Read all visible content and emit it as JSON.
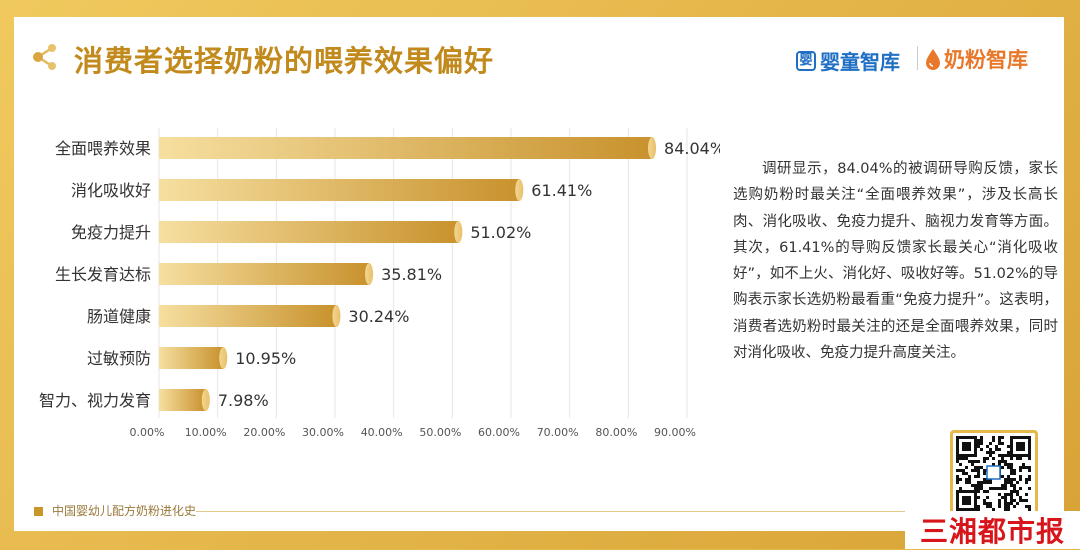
{
  "title": "消费者选择奶粉的喂养效果偏好",
  "brands": {
    "brand1_logo_char": "婴",
    "brand1": "婴童智库",
    "brand2": "奶粉智库"
  },
  "icons": {
    "title": "share-icon",
    "brand1": "baby-logo-icon",
    "brand2": "milk-drop-icon",
    "qr": "qr-code-icon"
  },
  "colors": {
    "bar_light": "#f6dfa0",
    "bar_dark": "#c8922d",
    "title": "#c28a1c",
    "frame": "#e7b94a"
  },
  "chart_data": {
    "type": "bar",
    "orientation": "horizontal",
    "categories": [
      "全面喂养效果",
      "消化吸收好",
      "免疫力提升",
      "生长发育达标",
      "肠道健康",
      "过敏预防",
      "智力、视力发育"
    ],
    "values": [
      84.04,
      61.41,
      51.02,
      35.81,
      30.24,
      10.95,
      7.98
    ],
    "value_labels": [
      "84.04%",
      "61.41%",
      "51.02%",
      "35.81%",
      "30.24%",
      "10.95%",
      "7.98%"
    ],
    "xlim": [
      0,
      90
    ],
    "xticks": [
      0,
      10,
      20,
      30,
      40,
      50,
      60,
      70,
      80,
      90
    ],
    "xtick_labels": [
      "0.00%",
      "10.00%",
      "20.00%",
      "30.00%",
      "40.00%",
      "50.00%",
      "60.00%",
      "70.00%",
      "80.00%",
      "90.00%"
    ],
    "grid": true,
    "title": "",
    "xlabel": "",
    "ylabel": ""
  },
  "description": "调研显示，84.04%的被调研导购反馈，家长选购奶粉时最关注“全面喂养效果”，涉及长高长肉、消化吸收、免疫力提升、脑视力发育等方面。其次，61.41%的导购反馈家长最关心“消化吸收好”，如不上火、消化好、吸收好等。51.02%的导购表示家长选奶粉最看重“免疫力提升”。这表明，消费者选奶粉时最关注的还是全面喂养效果，同时对消化吸收、免疫力提升高度关注。",
  "footer": "中国婴幼儿配方奶粉进化史",
  "stamp": "三湘都市报"
}
